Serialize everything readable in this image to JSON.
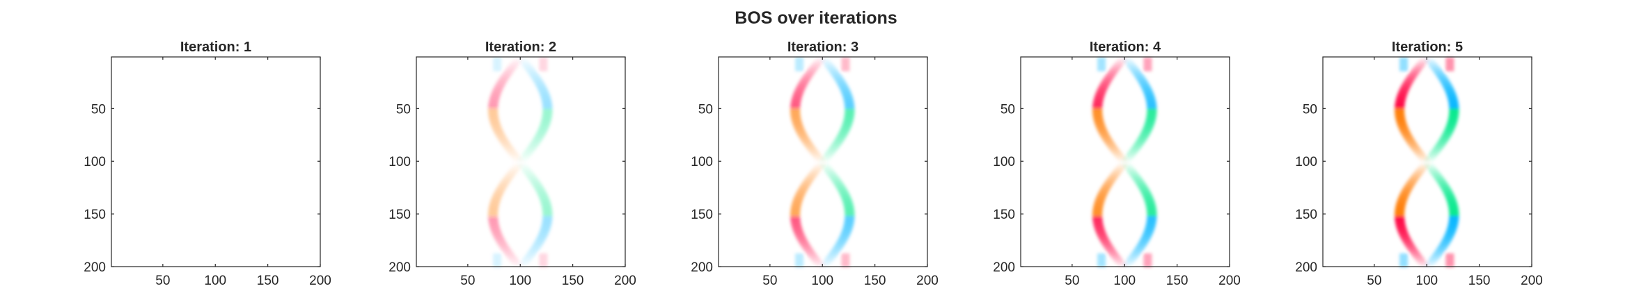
{
  "figure_title": "BOS over iterations",
  "chart_data": [
    {
      "type": "heatmap",
      "title": "Iteration: 1",
      "iteration": 1,
      "intensity": 0.0,
      "xlim": [
        1,
        200
      ],
      "ylim": [
        1,
        200
      ],
      "y_reversed": true,
      "xticks": [
        50,
        100,
        150,
        200
      ],
      "yticks": [
        50,
        100,
        150,
        200
      ]
    },
    {
      "type": "heatmap",
      "title": "Iteration: 2",
      "iteration": 2,
      "intensity": 0.35,
      "xlim": [
        1,
        200
      ],
      "ylim": [
        1,
        200
      ],
      "y_reversed": true,
      "xticks": [
        50,
        100,
        150,
        200
      ],
      "yticks": [
        50,
        100,
        150,
        200
      ]
    },
    {
      "type": "heatmap",
      "title": "Iteration: 3",
      "iteration": 3,
      "intensity": 0.6,
      "xlim": [
        1,
        200
      ],
      "ylim": [
        1,
        200
      ],
      "y_reversed": true,
      "xticks": [
        50,
        100,
        150,
        200
      ],
      "yticks": [
        50,
        100,
        150,
        200
      ]
    },
    {
      "type": "heatmap",
      "title": "Iteration: 4",
      "iteration": 4,
      "intensity": 0.8,
      "xlim": [
        1,
        200
      ],
      "ylim": [
        1,
        200
      ],
      "y_reversed": true,
      "xticks": [
        50,
        100,
        150,
        200
      ],
      "yticks": [
        50,
        100,
        150,
        200
      ]
    },
    {
      "type": "heatmap",
      "title": "Iteration: 5",
      "iteration": 5,
      "intensity": 0.95,
      "xlim": [
        1,
        200
      ],
      "ylim": [
        1,
        200
      ],
      "y_reversed": true,
      "xticks": [
        50,
        100,
        150,
        200
      ],
      "yticks": [
        50,
        100,
        150,
        200
      ]
    }
  ],
  "colors": {
    "axis": "#262626",
    "left_negative": "#ff0040",
    "left_positive": "#ff7a00",
    "right_negative": "#00b4ff",
    "right_positive": "#00e88a"
  }
}
